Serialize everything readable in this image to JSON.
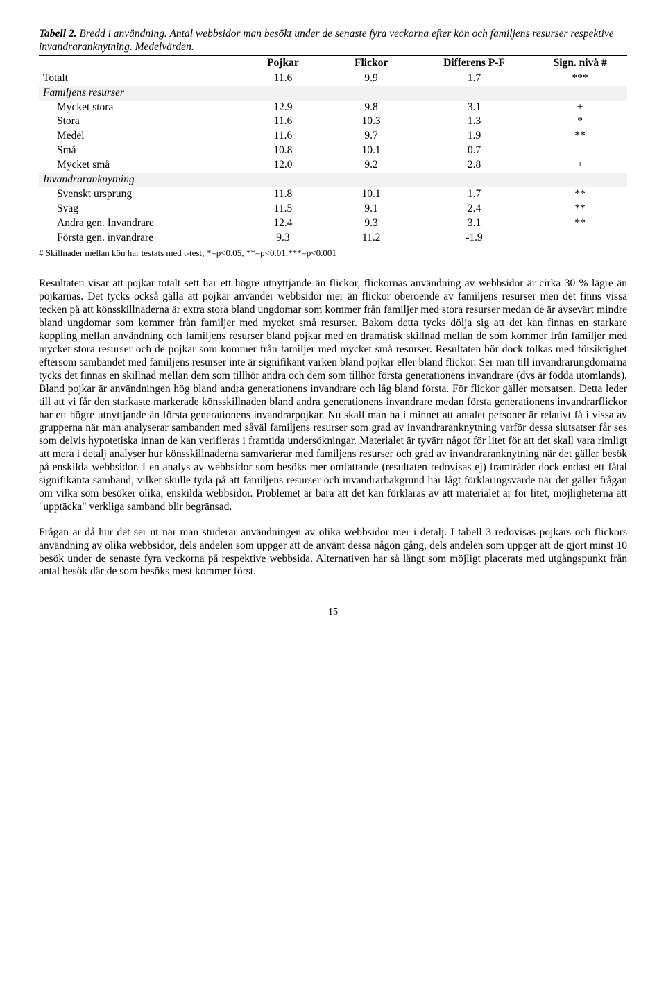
{
  "caption": {
    "lead": "Tabell 2.",
    "rest": " Bredd i användning. Antal webbsidor man besökt under de senaste fyra veckorna efter kön och familjens resurser respektive invandraranknytning. Medelvärden."
  },
  "headers": [
    "",
    "Pojkar",
    "Flickor",
    "Differens P-F",
    "Sign. nivå #"
  ],
  "rows": [
    {
      "type": "data",
      "cells": [
        "Totalt",
        "11.6",
        "9.9",
        "1.7",
        "***"
      ]
    },
    {
      "type": "section",
      "cells": [
        "Familjens resurser",
        "",
        "",
        "",
        ""
      ]
    },
    {
      "type": "indent",
      "cells": [
        "Mycket stora",
        "12.9",
        "9.8",
        "3.1",
        "+"
      ]
    },
    {
      "type": "indent",
      "cells": [
        "Stora",
        "11.6",
        "10.3",
        "1.3",
        "*"
      ]
    },
    {
      "type": "indent",
      "cells": [
        "Medel",
        "11.6",
        "9.7",
        "1.9",
        "**"
      ]
    },
    {
      "type": "indent",
      "cells": [
        "Små",
        "10.8",
        "10.1",
        "0.7",
        ""
      ]
    },
    {
      "type": "indent",
      "cells": [
        "Mycket små",
        "12.0",
        "9.2",
        "2.8",
        "+"
      ]
    },
    {
      "type": "section",
      "cells": [
        "Invandraranknytning",
        "",
        "",
        "",
        ""
      ]
    },
    {
      "type": "indent",
      "cells": [
        "Svenskt ursprung",
        "11.8",
        "10.1",
        "1.7",
        "**"
      ]
    },
    {
      "type": "indent",
      "cells": [
        "Svag",
        "11.5",
        "9.1",
        "2.4",
        "**"
      ]
    },
    {
      "type": "indent",
      "cells": [
        "Andra gen. Invandrare",
        "12.4",
        "9.3",
        "3.1",
        "**"
      ]
    },
    {
      "type": "indent",
      "cells": [
        "Första gen. invandrare",
        "9.3",
        "11.2",
        "-1.9",
        ""
      ]
    }
  ],
  "footnote": "# Skillnader mellan kön har testats med t-test; *=p<0.05, **=p<0.01,***=p<0.001",
  "para1": "Resultaten visar att pojkar totalt sett har ett högre utnyttjande än flickor, flickornas användning av webbsidor är cirka 30 % lägre än pojkarnas. Det tycks också gälla att pojkar använder webbsidor mer än flickor oberoende av familjens resurser men det finns vissa tecken på att könsskillnaderna är extra stora bland ungdomar som kommer från familjer med stora resurser medan de är avsevärt mindre bland ungdomar som kommer från familjer med mycket små resurser. Bakom detta tycks dölja sig att det kan finnas en starkare koppling mellan användning och familjens resurser bland pojkar med en dramatisk skillnad mellan de som kommer från familjer med mycket stora resurser och de pojkar som kommer från familjer med mycket små resurser. Resultaten bör dock tolkas med försiktighet eftersom sambandet med familjens resurser inte är signifikant varken bland pojkar eller bland flickor. Ser man till invandrarungdomarna tycks det finnas en skillnad mellan dem som tillhör andra och dem som tillhör första generationens invandrare (dvs är födda utomlands). Bland pojkar är användningen hög bland andra generationens invandrare och låg bland första. För flickor gäller motsatsen. Detta leder till att vi får den starkaste markerade könsskillnaden bland andra generationens invandrare medan första generationens invandrarflickor har ett högre utnyttjande än första generationens invandrarpojkar. Nu skall man ha i minnet att antalet personer är relativt få i vissa av grupperna när man analyserar sambanden med såväl familjens resurser som grad av invandraranknytning varför dessa slutsatser får ses som delvis hypotetiska innan de kan verifieras i framtida undersökningar. Materialet är tyvärr något för litet för att det skall vara rimligt att mera i detalj analyser hur könsskillnaderna samvarierar med familjens resurser och grad av invandraranknytning när det gäller besök på enskilda webbsidor. I en analys av webbsidor som besöks mer omfattande (resultaten redovisas ej) framträder dock endast ett fåtal signifikanta samband, vilket skulle tyda på att familjens resurser och invandrarbakgrund har lågt förklaringsvärde när det gäller frågan om vilka som besöker olika, enskilda webbsidor. Problemet är bara att det kan förklaras av att materialet är för litet, möjligheterna att \"upptäcka\" verkliga samband blir begränsad.",
  "para2": "Frågan är då hur det ser ut när man studerar användningen av olika webbsidor mer i detalj. I tabell 3 redovisas pojkars och flickors användning av olika webbsidor, dels andelen som uppger att de använt dessa någon gång, dels andelen som uppger att de gjort minst 10 besök under de senaste fyra veckorna på respektive webbsida. Alternativen har så långt som möjligt placerats med utgångspunkt från antal besök där de som besöks mest kommer först.",
  "page_number": "15"
}
